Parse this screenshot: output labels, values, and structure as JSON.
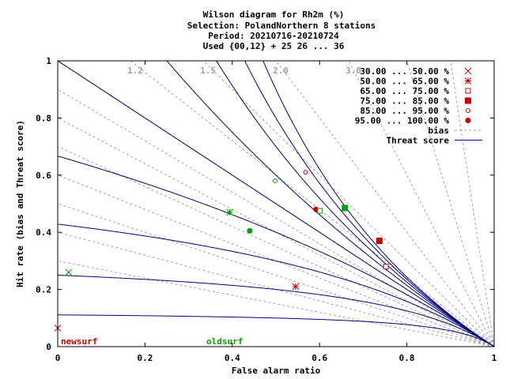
{
  "chart_data": {
    "type": "scatter",
    "title_lines": [
      "Wilson diagram  for Rh2m (%)",
      "Selection: PolandNorthern      8 stations",
      "Period: 20210716-20210724",
      "Used {00,12} + 25 26 ... 36"
    ],
    "xlabel": "False alarm ratio",
    "ylabel": "Hit rate (bias and Threat score)",
    "xlim": [
      0,
      1
    ],
    "ylim": [
      0,
      1
    ],
    "x_ticks": [
      "0",
      "0.2",
      "0.4",
      "0.6",
      "0.8",
      "1"
    ],
    "y_ticks": [
      "0",
      "0.2",
      "0.4",
      "0.6",
      "0.8",
      "1"
    ],
    "bias_lines": [
      0.3,
      0.4,
      0.5,
      0.6,
      0.7,
      0.8,
      0.9,
      1.0,
      1.2,
      1.5,
      2.0,
      3.0,
      5.0,
      10.0
    ],
    "bias_labels": [
      "1.2",
      "1.5",
      "2.0",
      "3.0"
    ],
    "threat_scores": [
      0.1,
      0.2,
      0.3,
      0.4,
      0.5,
      0.6,
      0.7,
      0.8,
      0.9
    ],
    "legend": {
      "classes": [
        {
          "label": "30.00  ...  50.00 %",
          "marker": "x"
        },
        {
          "label": "50.00  ...  65.00 %",
          "marker": "star"
        },
        {
          "label": "65.00  ...  75.00 %",
          "marker": "open-square"
        },
        {
          "label": "75.00  ...  85.00 %",
          "marker": "filled-square"
        },
        {
          "label": "85.00  ...  95.00 %",
          "marker": "open-circle"
        },
        {
          "label": "95.00  ... 100.00 %",
          "marker": "filled-circle"
        }
      ],
      "bias_label": "bias",
      "threat_label": "Threat score"
    },
    "series": [
      {
        "name": "newsurf",
        "color": "#cc0000",
        "points": [
          {
            "marker": "x",
            "x": 0.0,
            "y": 0.065
          },
          {
            "marker": "star",
            "x": 0.545,
            "y": 0.21
          },
          {
            "marker": "open-square",
            "x": 0.752,
            "y": 0.28
          },
          {
            "marker": "filled-square",
            "x": 0.737,
            "y": 0.37
          },
          {
            "marker": "open-circle",
            "x": 0.568,
            "y": 0.61
          },
          {
            "marker": "filled-circle",
            "x": 0.592,
            "y": 0.48
          }
        ]
      },
      {
        "name": "oldsurf",
        "color": "#00a000",
        "points": [
          {
            "marker": "x",
            "x": 0.025,
            "y": 0.26
          },
          {
            "marker": "star",
            "x": 0.394,
            "y": 0.47
          },
          {
            "marker": "open-square",
            "x": 0.601,
            "y": 0.475
          },
          {
            "marker": "filled-square",
            "x": 0.658,
            "y": 0.485
          },
          {
            "marker": "open-circle",
            "x": 0.498,
            "y": 0.58
          },
          {
            "marker": "filled-circle",
            "x": 0.44,
            "y": 0.405
          }
        ]
      }
    ],
    "colors": {
      "bias": "#a0a0a0",
      "threat": "#000080",
      "legend_marker": "#cc0000"
    }
  }
}
